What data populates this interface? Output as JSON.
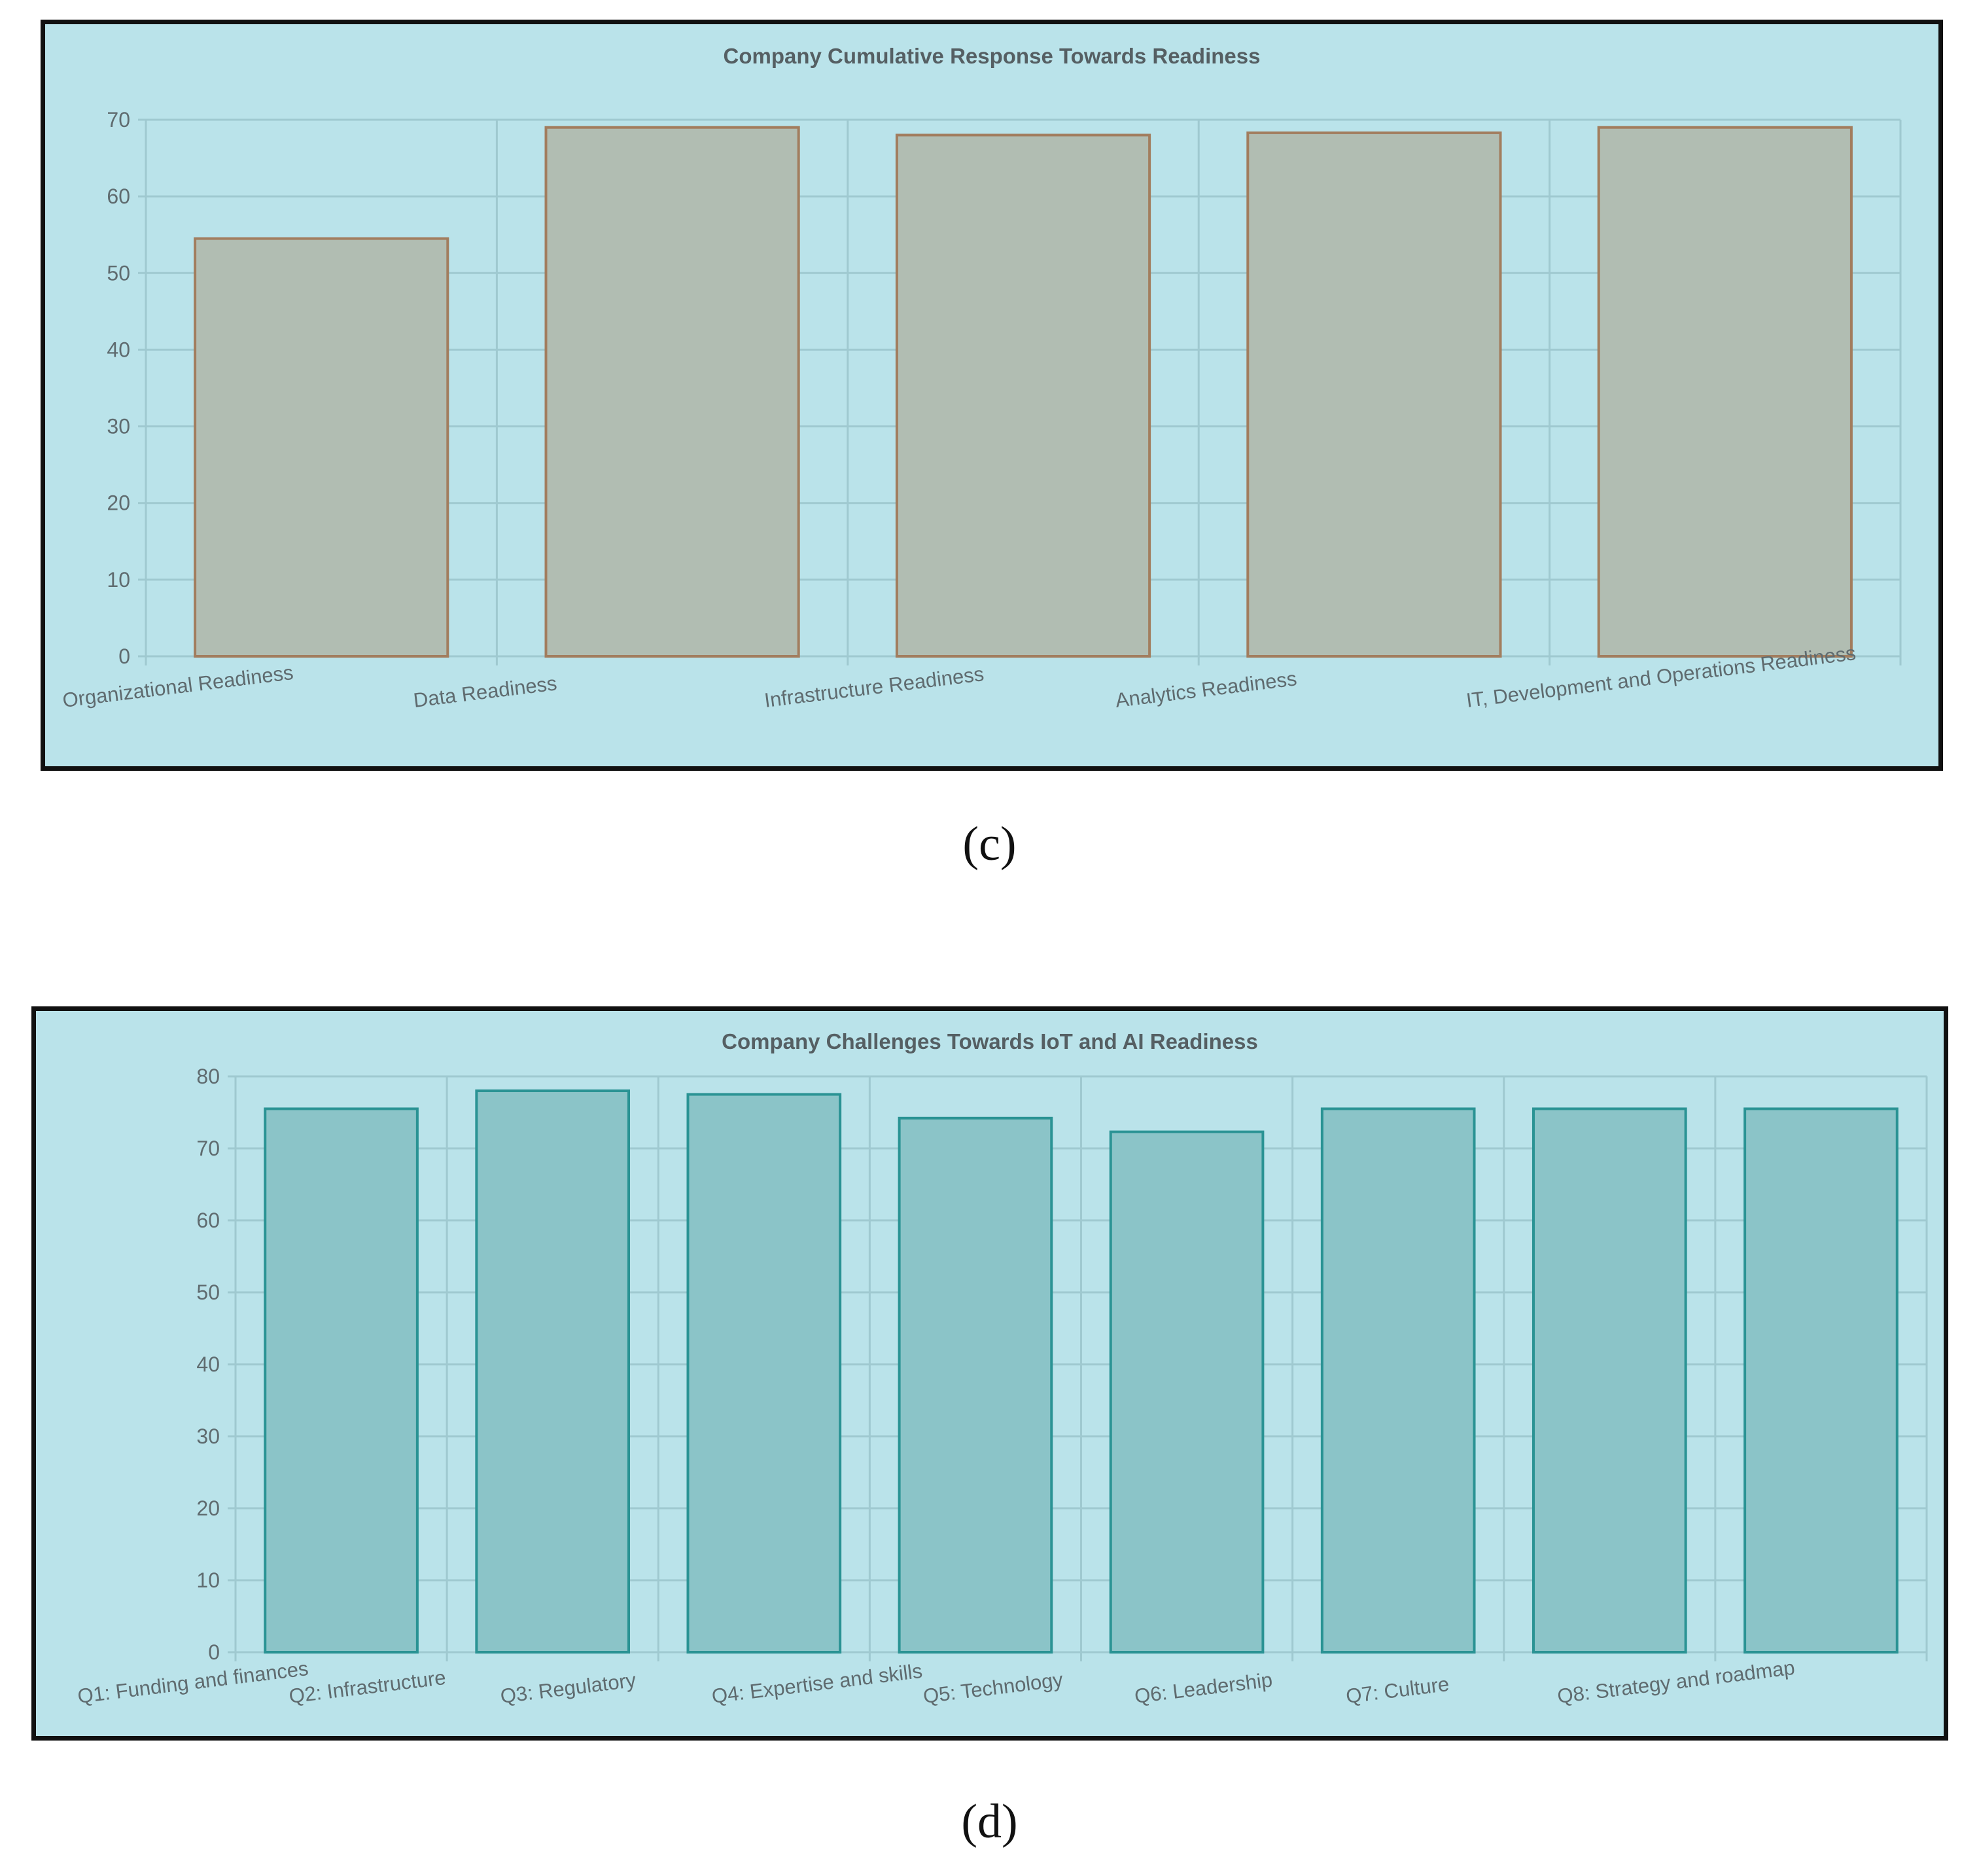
{
  "colors": {
    "panel_background": "#bae3ea",
    "grid": "#9fc9d0",
    "axis_text": "#5f6b6f",
    "title_text": "#555f63",
    "chart_c_bar_fill": "#b1bdb2",
    "chart_c_bar_stroke": "#a27d5e",
    "chart_d_bar_fill": "#8bc4c8",
    "chart_d_bar_stroke": "#2a9394"
  },
  "captions": {
    "c": "(c)",
    "d": "(d)"
  },
  "chart_data": [
    {
      "type": "bar",
      "title": "Company Cumulative Response Towards Readiness",
      "xlabel": "",
      "ylabel": "",
      "categories": [
        "Organizational Readiness",
        "Data Readiness",
        "Infrastructure Readiness",
        "Analytics Readiness",
        "IT, Development and Operations Readiness"
      ],
      "values": [
        54.5,
        69,
        68,
        68.3,
        69
      ],
      "ylim": [
        0,
        70
      ],
      "yticks": [
        0,
        10,
        20,
        30,
        40,
        50,
        60,
        70
      ],
      "grid": true,
      "legend": "none"
    },
    {
      "type": "bar",
      "title": "Company Challenges Towards IoT and AI Readiness",
      "xlabel": "",
      "ylabel": "",
      "categories": [
        "Q1: Funding and finances",
        "Q2: Infrastructure",
        "Q3: Regulatory",
        "Q4: Expertise and skills",
        "Q5: Technology",
        "Q6: Leadership",
        "Q7: Culture",
        "Q8: Strategy and roadmap"
      ],
      "values": [
        75.5,
        78,
        77.5,
        74.2,
        72.3,
        75.5,
        75.5,
        75.5
      ],
      "ylim": [
        0,
        80
      ],
      "yticks": [
        0,
        10,
        20,
        30,
        40,
        50,
        60,
        70,
        80
      ],
      "grid": true,
      "legend": "none"
    }
  ]
}
